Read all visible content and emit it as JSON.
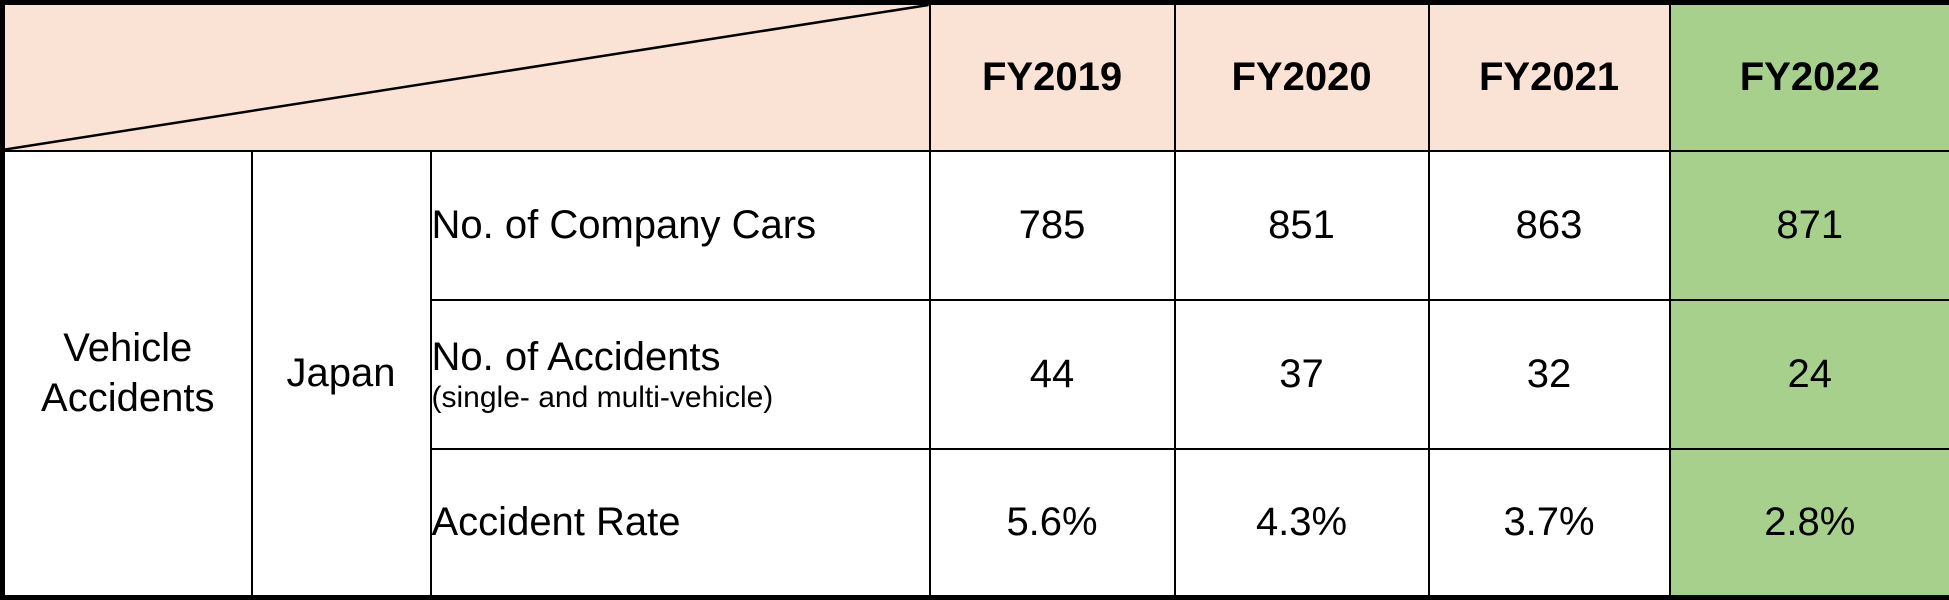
{
  "table": {
    "category": "Vehicle\nAccidents",
    "region": "Japan",
    "header": {
      "fy2019": "FY2019",
      "fy2020": "FY2020",
      "fy2021": "FY2021",
      "fy2022": "FY2022"
    },
    "rows": [
      {
        "label": "No. of Company Cars",
        "sublabel": "",
        "values": [
          "785",
          "851",
          "863",
          "871"
        ]
      },
      {
        "label": "No. of Accidents",
        "sublabel": "(single- and multi-vehicle)",
        "values": [
          "44",
          "37",
          "32",
          "24"
        ]
      },
      {
        "label": "Accident Rate",
        "sublabel": "",
        "values": [
          "5.6%",
          "4.3%",
          "3.7%",
          "2.8%"
        ]
      }
    ],
    "colors": {
      "header_bg": "#FAE3D5",
      "highlight_bg": "#A8D08D",
      "border": "#000000"
    }
  },
  "chart_data": {
    "type": "table",
    "title": "Vehicle Accidents (Japan)",
    "row_group": "Vehicle Accidents",
    "region": "Japan",
    "columns": [
      "FY2019",
      "FY2020",
      "FY2021",
      "FY2022"
    ],
    "rows": [
      {
        "label": "No. of Company Cars",
        "values": [
          785,
          851,
          863,
          871
        ]
      },
      {
        "label": "No. of Accidents (single- and multi-vehicle)",
        "values": [
          44,
          37,
          32,
          24
        ]
      },
      {
        "label": "Accident Rate",
        "values": [
          "5.6%",
          "4.3%",
          "3.7%",
          "2.8%"
        ]
      }
    ],
    "highlighted_column": "FY2022",
    "layout": {
      "diagonal_split_corner_cell": true,
      "header_bg": "#FAE3D5",
      "highlight_bg": "#A8D08D"
    }
  }
}
